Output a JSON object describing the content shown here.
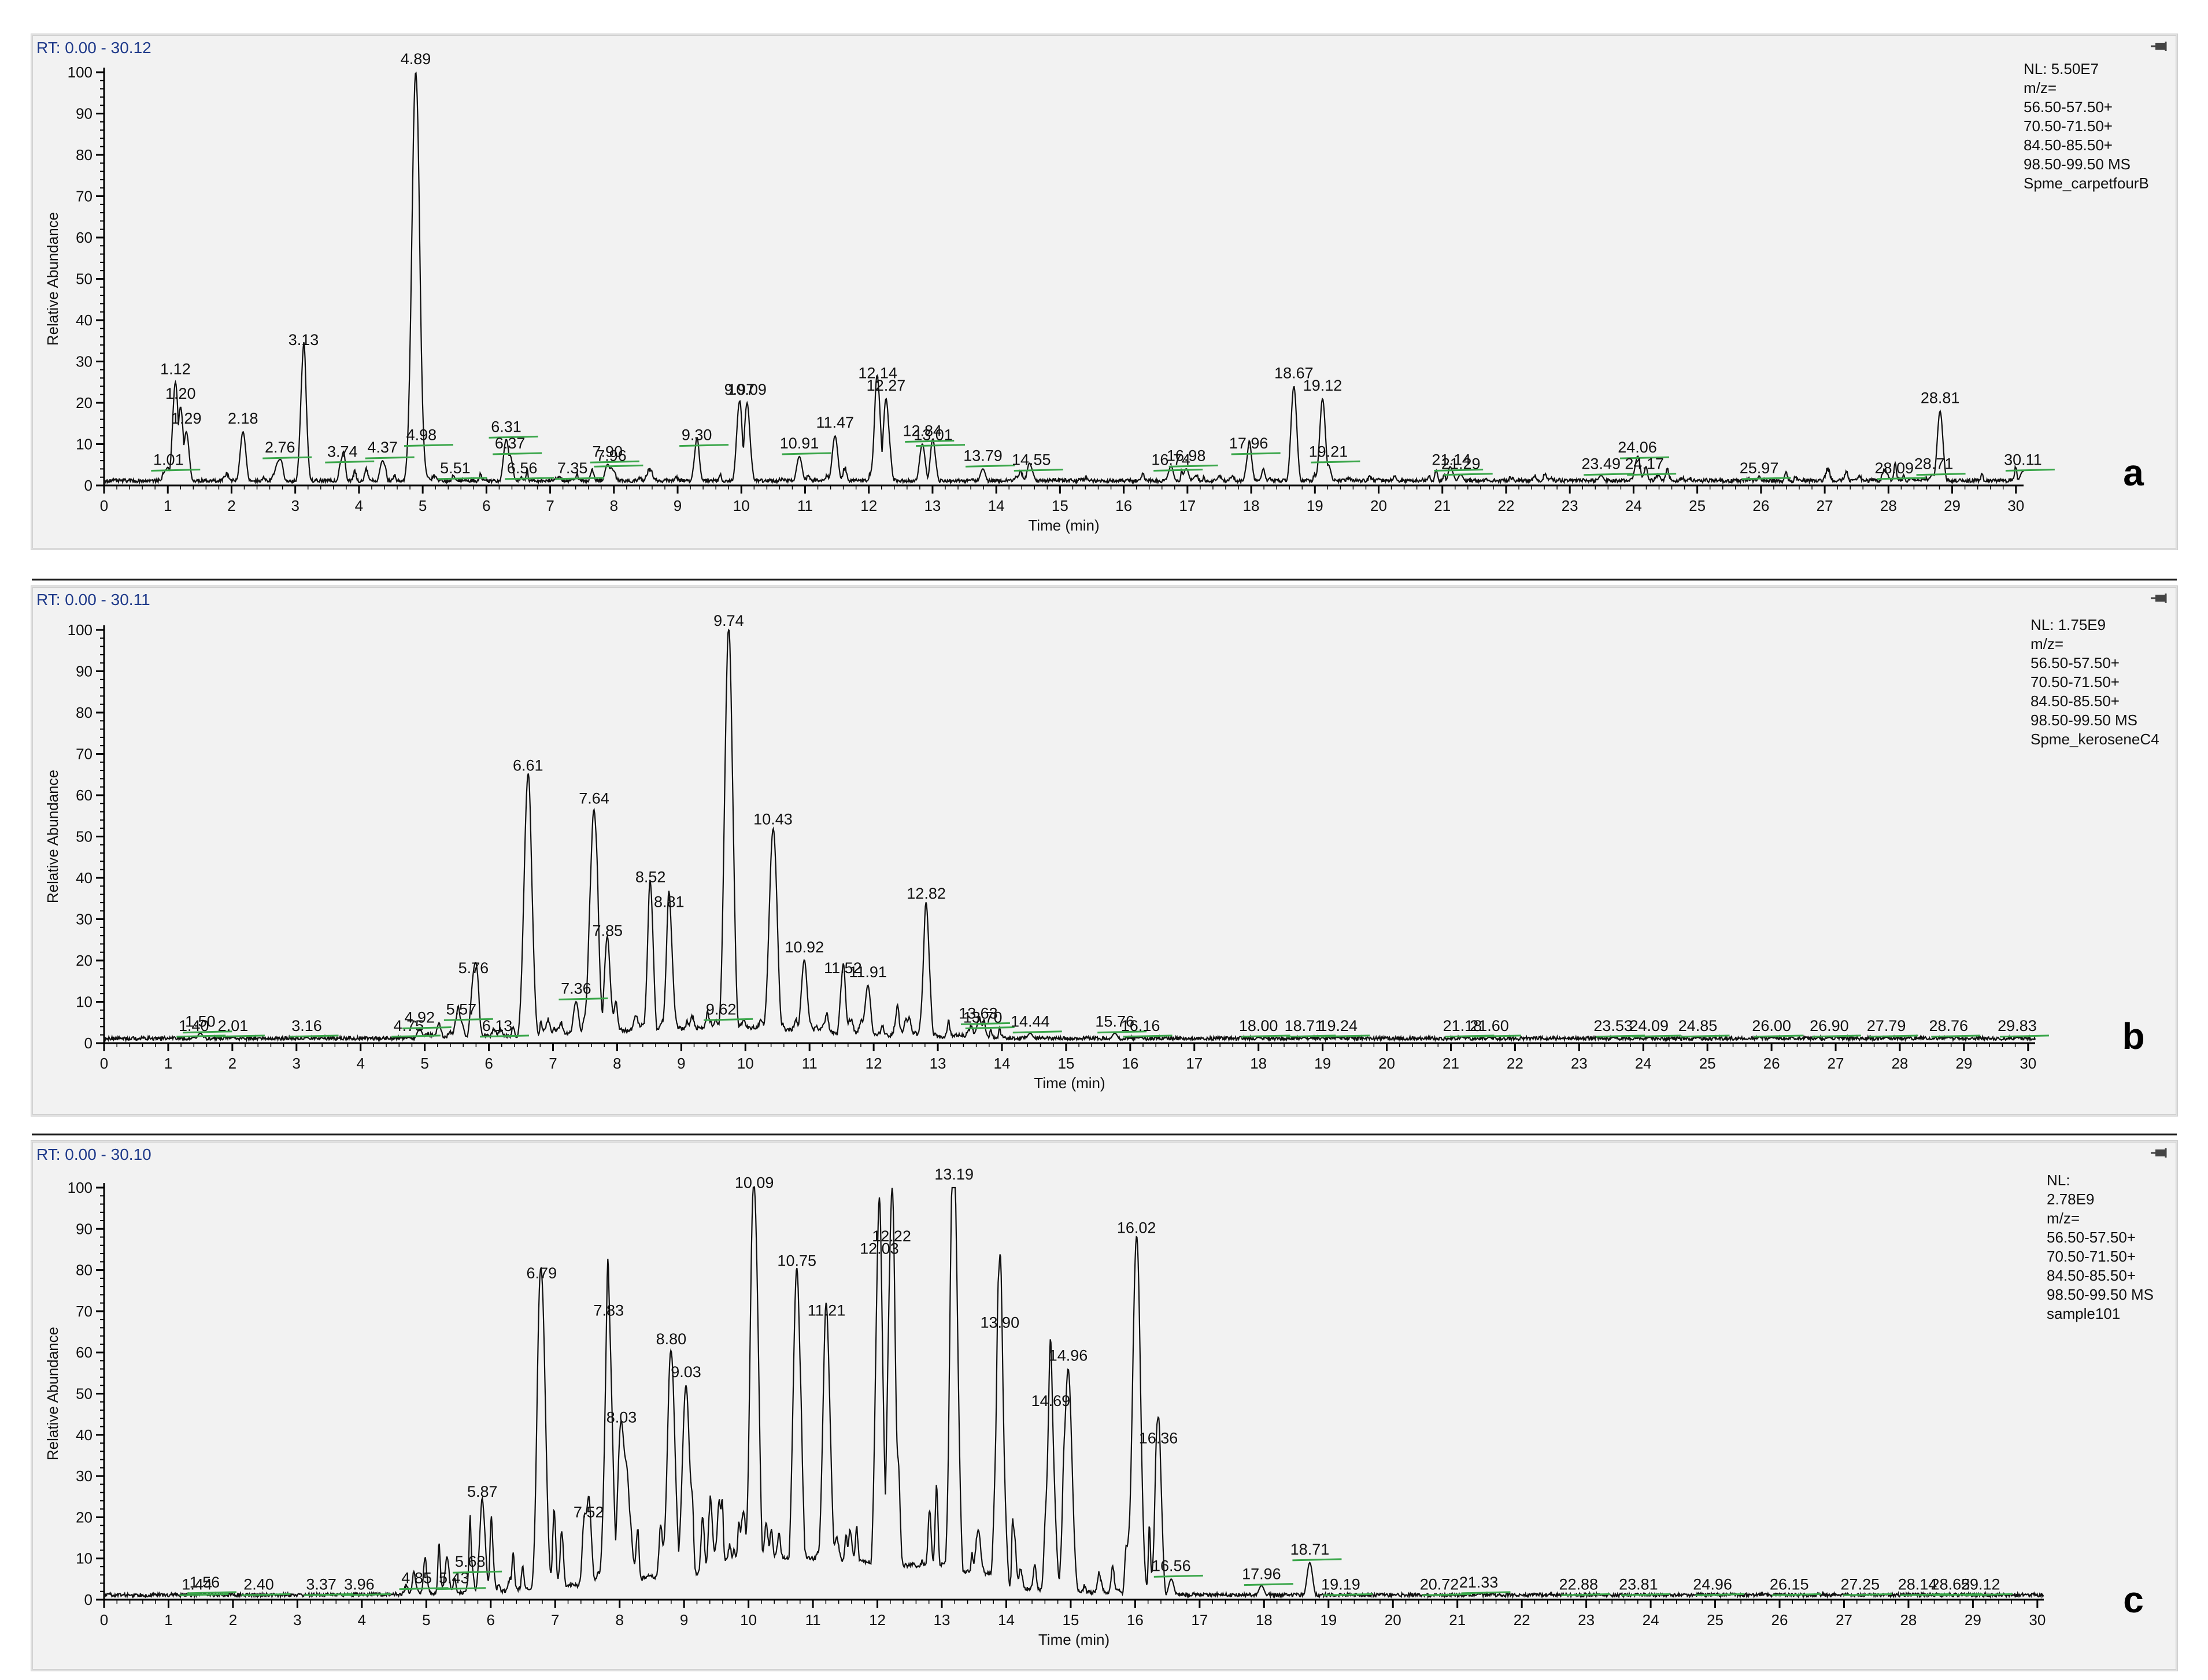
{
  "colors": {
    "panel_bg": "#f2f2f2",
    "trace": "#111111",
    "rt_label": "#1f3a8a",
    "baseline_marker": "#3aa64a",
    "frame": "#cfcfcf"
  },
  "chart_data": [
    {
      "type": "line",
      "panel_letter": "a",
      "rt_label": "RT: 0.00 - 30.12",
      "info_lines": [
        "NL: 5.50E7",
        "m/z=",
        "56.50-57.50+",
        "70.50-71.50+",
        "84.50-85.50+",
        "98.50-99.50  MS",
        "Spme_carpetfourB"
      ],
      "xlabel": "Time (min)",
      "ylabel": "Relative Abundance",
      "xlim": [
        0,
        30.12
      ],
      "ylim": [
        0,
        100
      ],
      "x_ticks": [
        "0",
        "1",
        "2",
        "3",
        "4",
        "5",
        "6",
        "7",
        "8",
        "9",
        "10",
        "11",
        "12",
        "13",
        "14",
        "15",
        "16",
        "17",
        "18",
        "19",
        "20",
        "21",
        "22",
        "23",
        "24",
        "25",
        "26",
        "27",
        "28",
        "29",
        "30"
      ],
      "y_ticks": [
        "0",
        "10",
        "20",
        "30",
        "40",
        "50",
        "60",
        "70",
        "80",
        "90",
        "100"
      ],
      "peak_labels": [
        {
          "x": 1.01,
          "y": 3,
          "label": "1.01"
        },
        {
          "x": 1.12,
          "y": 25,
          "label": "1.12"
        },
        {
          "x": 1.2,
          "y": 19,
          "label": "1.20"
        },
        {
          "x": 1.29,
          "y": 13,
          "label": "1.29"
        },
        {
          "x": 2.18,
          "y": 13,
          "label": "2.18"
        },
        {
          "x": 2.76,
          "y": 6,
          "label": "2.76"
        },
        {
          "x": 3.13,
          "y": 32,
          "label": "3.13"
        },
        {
          "x": 3.74,
          "y": 5,
          "label": "3.74"
        },
        {
          "x": 4.37,
          "y": 6,
          "label": "4.37"
        },
        {
          "x": 4.89,
          "y": 100,
          "label": "4.89"
        },
        {
          "x": 4.98,
          "y": 9,
          "label": "4.98"
        },
        {
          "x": 5.51,
          "y": 1,
          "label": "5.51"
        },
        {
          "x": 6.31,
          "y": 11,
          "label": "6.31"
        },
        {
          "x": 6.37,
          "y": 7,
          "label": "6.37"
        },
        {
          "x": 6.56,
          "y": 1,
          "label": "6.56"
        },
        {
          "x": 7.35,
          "y": 1,
          "label": "7.35"
        },
        {
          "x": 7.9,
          "y": 5,
          "label": "7.90"
        },
        {
          "x": 7.96,
          "y": 4,
          "label": "7.96"
        },
        {
          "x": 9.3,
          "y": 9,
          "label": "9.30"
        },
        {
          "x": 9.97,
          "y": 20,
          "label": "9.97"
        },
        {
          "x": 10.09,
          "y": 20,
          "label": "10.09"
        },
        {
          "x": 10.91,
          "y": 7,
          "label": "10.91"
        },
        {
          "x": 11.47,
          "y": 12,
          "label": "11.47"
        },
        {
          "x": 12.14,
          "y": 24,
          "label": "12.14"
        },
        {
          "x": 12.27,
          "y": 21,
          "label": "12.27"
        },
        {
          "x": 12.84,
          "y": 10,
          "label": "12.84"
        },
        {
          "x": 13.01,
          "y": 9,
          "label": "13.01"
        },
        {
          "x": 13.79,
          "y": 4,
          "label": "13.79"
        },
        {
          "x": 14.55,
          "y": 3,
          "label": "14.55"
        },
        {
          "x": 16.74,
          "y": 3,
          "label": "16.74"
        },
        {
          "x": 16.98,
          "y": 4,
          "label": "16.98"
        },
        {
          "x": 17.96,
          "y": 7,
          "label": "17.96"
        },
        {
          "x": 18.67,
          "y": 24,
          "label": "18.67"
        },
        {
          "x": 19.12,
          "y": 21,
          "label": "19.12"
        },
        {
          "x": 19.21,
          "y": 5,
          "label": "19.21"
        },
        {
          "x": 21.14,
          "y": 3,
          "label": "21.14"
        },
        {
          "x": 21.29,
          "y": 2,
          "label": "21.29"
        },
        {
          "x": 23.49,
          "y": 2,
          "label": "23.49"
        },
        {
          "x": 24.06,
          "y": 6,
          "label": "24.06"
        },
        {
          "x": 24.17,
          "y": 2,
          "label": "24.17"
        },
        {
          "x": 25.97,
          "y": 1,
          "label": "25.97"
        },
        {
          "x": 28.09,
          "y": 1,
          "label": "28.09"
        },
        {
          "x": 28.71,
          "y": 2,
          "label": "28.71"
        },
        {
          "x": 28.81,
          "y": 18,
          "label": "28.81"
        },
        {
          "x": 30.11,
          "y": 3,
          "label": "30.11"
        }
      ]
    },
    {
      "type": "line",
      "panel_letter": "b",
      "rt_label": "RT: 0.00 - 30.11",
      "info_lines": [
        "NL: 1.75E9",
        "m/z=",
        "56.50-57.50+",
        "70.50-71.50+",
        "84.50-85.50+",
        "98.50-99.50  MS",
        "Spme_keroseneC4"
      ],
      "xlabel": "Time (min)",
      "ylabel": "Relative Abundance",
      "xlim": [
        0,
        30.11
      ],
      "ylim": [
        0,
        100
      ],
      "x_ticks": [
        "0",
        "1",
        "2",
        "3",
        "4",
        "5",
        "6",
        "7",
        "8",
        "9",
        "10",
        "11",
        "12",
        "13",
        "14",
        "15",
        "16",
        "17",
        "18",
        "19",
        "20",
        "21",
        "22",
        "23",
        "24",
        "25",
        "26",
        "27",
        "28",
        "29",
        "30"
      ],
      "y_ticks": [
        "0",
        "10",
        "20",
        "30",
        "40",
        "50",
        "60",
        "70",
        "80",
        "90",
        "100"
      ],
      "peak_labels": [
        {
          "x": 1.4,
          "y": 1,
          "label": "1.40"
        },
        {
          "x": 1.5,
          "y": 2,
          "label": "1.50"
        },
        {
          "x": 2.01,
          "y": 1,
          "label": "2.01"
        },
        {
          "x": 3.16,
          "y": 1,
          "label": "3.16"
        },
        {
          "x": 4.75,
          "y": 1,
          "label": "4.75"
        },
        {
          "x": 4.92,
          "y": 3,
          "label": "4.92"
        },
        {
          "x": 5.57,
          "y": 5,
          "label": "5.57"
        },
        {
          "x": 5.76,
          "y": 15,
          "label": "5.76"
        },
        {
          "x": 6.13,
          "y": 1,
          "label": "6.13"
        },
        {
          "x": 6.61,
          "y": 64,
          "label": "6.61"
        },
        {
          "x": 7.36,
          "y": 10,
          "label": "7.36"
        },
        {
          "x": 7.64,
          "y": 56,
          "label": "7.64"
        },
        {
          "x": 7.85,
          "y": 24,
          "label": "7.85"
        },
        {
          "x": 8.52,
          "y": 37,
          "label": "8.52"
        },
        {
          "x": 8.81,
          "y": 31,
          "label": "8.81"
        },
        {
          "x": 9.62,
          "y": 5,
          "label": "9.62"
        },
        {
          "x": 9.74,
          "y": 99,
          "label": "9.74"
        },
        {
          "x": 10.43,
          "y": 51,
          "label": "10.43"
        },
        {
          "x": 10.92,
          "y": 20,
          "label": "10.92"
        },
        {
          "x": 11.52,
          "y": 15,
          "label": "11.52"
        },
        {
          "x": 11.91,
          "y": 14,
          "label": "11.91"
        },
        {
          "x": 12.82,
          "y": 33,
          "label": "12.82"
        },
        {
          "x": 13.63,
          "y": 4,
          "label": "13.63"
        },
        {
          "x": 13.7,
          "y": 3,
          "label": "13.70"
        },
        {
          "x": 14.44,
          "y": 2,
          "label": "14.44"
        },
        {
          "x": 15.76,
          "y": 2,
          "label": "15.76"
        },
        {
          "x": 16.16,
          "y": 1,
          "label": "16.16"
        },
        {
          "x": 18.0,
          "y": 1,
          "label": "18.00"
        },
        {
          "x": 18.71,
          "y": 1,
          "label": "18.71"
        },
        {
          "x": 19.24,
          "y": 1,
          "label": "19.24"
        },
        {
          "x": 21.18,
          "y": 1,
          "label": "21.18"
        },
        {
          "x": 21.6,
          "y": 1,
          "label": "21.60"
        },
        {
          "x": 23.53,
          "y": 1,
          "label": "23.53"
        },
        {
          "x": 24.09,
          "y": 1,
          "label": "24.09"
        },
        {
          "x": 24.85,
          "y": 1,
          "label": "24.85"
        },
        {
          "x": 26.0,
          "y": 1,
          "label": "26.00"
        },
        {
          "x": 26.9,
          "y": 1,
          "label": "26.90"
        },
        {
          "x": 27.79,
          "y": 1,
          "label": "27.79"
        },
        {
          "x": 28.76,
          "y": 1,
          "label": "28.76"
        },
        {
          "x": 29.83,
          "y": 1,
          "label": "29.83"
        }
      ]
    },
    {
      "type": "line",
      "panel_letter": "c",
      "rt_label": "RT: 0.00 - 30.10",
      "info_lines": [
        "NL:",
        "2.78E9",
        "m/z=",
        "56.50-57.50+",
        "70.50-71.50+",
        "84.50-85.50+",
        "98.50-99.50  MS",
        "sample101"
      ],
      "xlabel": "Time (min)",
      "ylabel": "Relative Abundance",
      "xlim": [
        0,
        30.1
      ],
      "ylim": [
        0,
        100
      ],
      "x_ticks": [
        "0",
        "1",
        "2",
        "3",
        "4",
        "5",
        "6",
        "7",
        "8",
        "9",
        "10",
        "11",
        "12",
        "13",
        "14",
        "15",
        "16",
        "17",
        "18",
        "19",
        "20",
        "21",
        "22",
        "23",
        "24",
        "25",
        "26",
        "27",
        "28",
        "29",
        "30"
      ],
      "y_ticks": [
        "0",
        "10",
        "20",
        "30",
        "40",
        "50",
        "60",
        "70",
        "80",
        "90",
        "100"
      ],
      "peak_labels": [
        {
          "x": 1.44,
          "y": 0.5,
          "label": "1.44"
        },
        {
          "x": 1.56,
          "y": 1,
          "label": "1.56"
        },
        {
          "x": 2.4,
          "y": 0.5,
          "label": "2.40"
        },
        {
          "x": 3.37,
          "y": 0.5,
          "label": "3.37"
        },
        {
          "x": 3.96,
          "y": 0.5,
          "label": "3.96"
        },
        {
          "x": 4.85,
          "y": 2,
          "label": "4.85"
        },
        {
          "x": 5.43,
          "y": 2,
          "label": "5.43"
        },
        {
          "x": 5.68,
          "y": 6,
          "label": "5.68"
        },
        {
          "x": 5.87,
          "y": 23,
          "label": "5.87"
        },
        {
          "x": 6.79,
          "y": 76,
          "label": "6.79"
        },
        {
          "x": 7.52,
          "y": 18,
          "label": "7.52"
        },
        {
          "x": 7.83,
          "y": 67,
          "label": "7.83"
        },
        {
          "x": 8.03,
          "y": 41,
          "label": "8.03"
        },
        {
          "x": 8.8,
          "y": 60,
          "label": "8.80"
        },
        {
          "x": 9.03,
          "y": 52,
          "label": "9.03"
        },
        {
          "x": 10.09,
          "y": 98,
          "label": "10.09"
        },
        {
          "x": 10.75,
          "y": 79,
          "label": "10.75"
        },
        {
          "x": 11.21,
          "y": 67,
          "label": "11.21"
        },
        {
          "x": 12.03,
          "y": 82,
          "label": "12.03"
        },
        {
          "x": 12.22,
          "y": 85,
          "label": "12.22"
        },
        {
          "x": 13.19,
          "y": 100,
          "label": "13.19"
        },
        {
          "x": 13.9,
          "y": 64,
          "label": "13.90"
        },
        {
          "x": 14.69,
          "y": 45,
          "label": "14.69"
        },
        {
          "x": 14.96,
          "y": 56,
          "label": "14.96"
        },
        {
          "x": 16.02,
          "y": 87,
          "label": "16.02"
        },
        {
          "x": 16.36,
          "y": 36,
          "label": "16.36"
        },
        {
          "x": 16.56,
          "y": 5,
          "label": "16.56"
        },
        {
          "x": 17.96,
          "y": 3,
          "label": "17.96"
        },
        {
          "x": 18.71,
          "y": 9,
          "label": "18.71"
        },
        {
          "x": 19.19,
          "y": 0.5,
          "label": "19.19"
        },
        {
          "x": 20.72,
          "y": 0.5,
          "label": "20.72"
        },
        {
          "x": 21.33,
          "y": 1,
          "label": "21.33"
        },
        {
          "x": 22.88,
          "y": 0.5,
          "label": "22.88"
        },
        {
          "x": 23.81,
          "y": 0.5,
          "label": "23.81"
        },
        {
          "x": 24.96,
          "y": 0.5,
          "label": "24.96"
        },
        {
          "x": 26.15,
          "y": 0.5,
          "label": "26.15"
        },
        {
          "x": 27.25,
          "y": 0.5,
          "label": "27.25"
        },
        {
          "x": 28.14,
          "y": 0.5,
          "label": "28.14"
        },
        {
          "x": 28.65,
          "y": 0.5,
          "label": "28.65"
        },
        {
          "x": 29.12,
          "y": 0.5,
          "label": "29.12"
        }
      ]
    }
  ]
}
